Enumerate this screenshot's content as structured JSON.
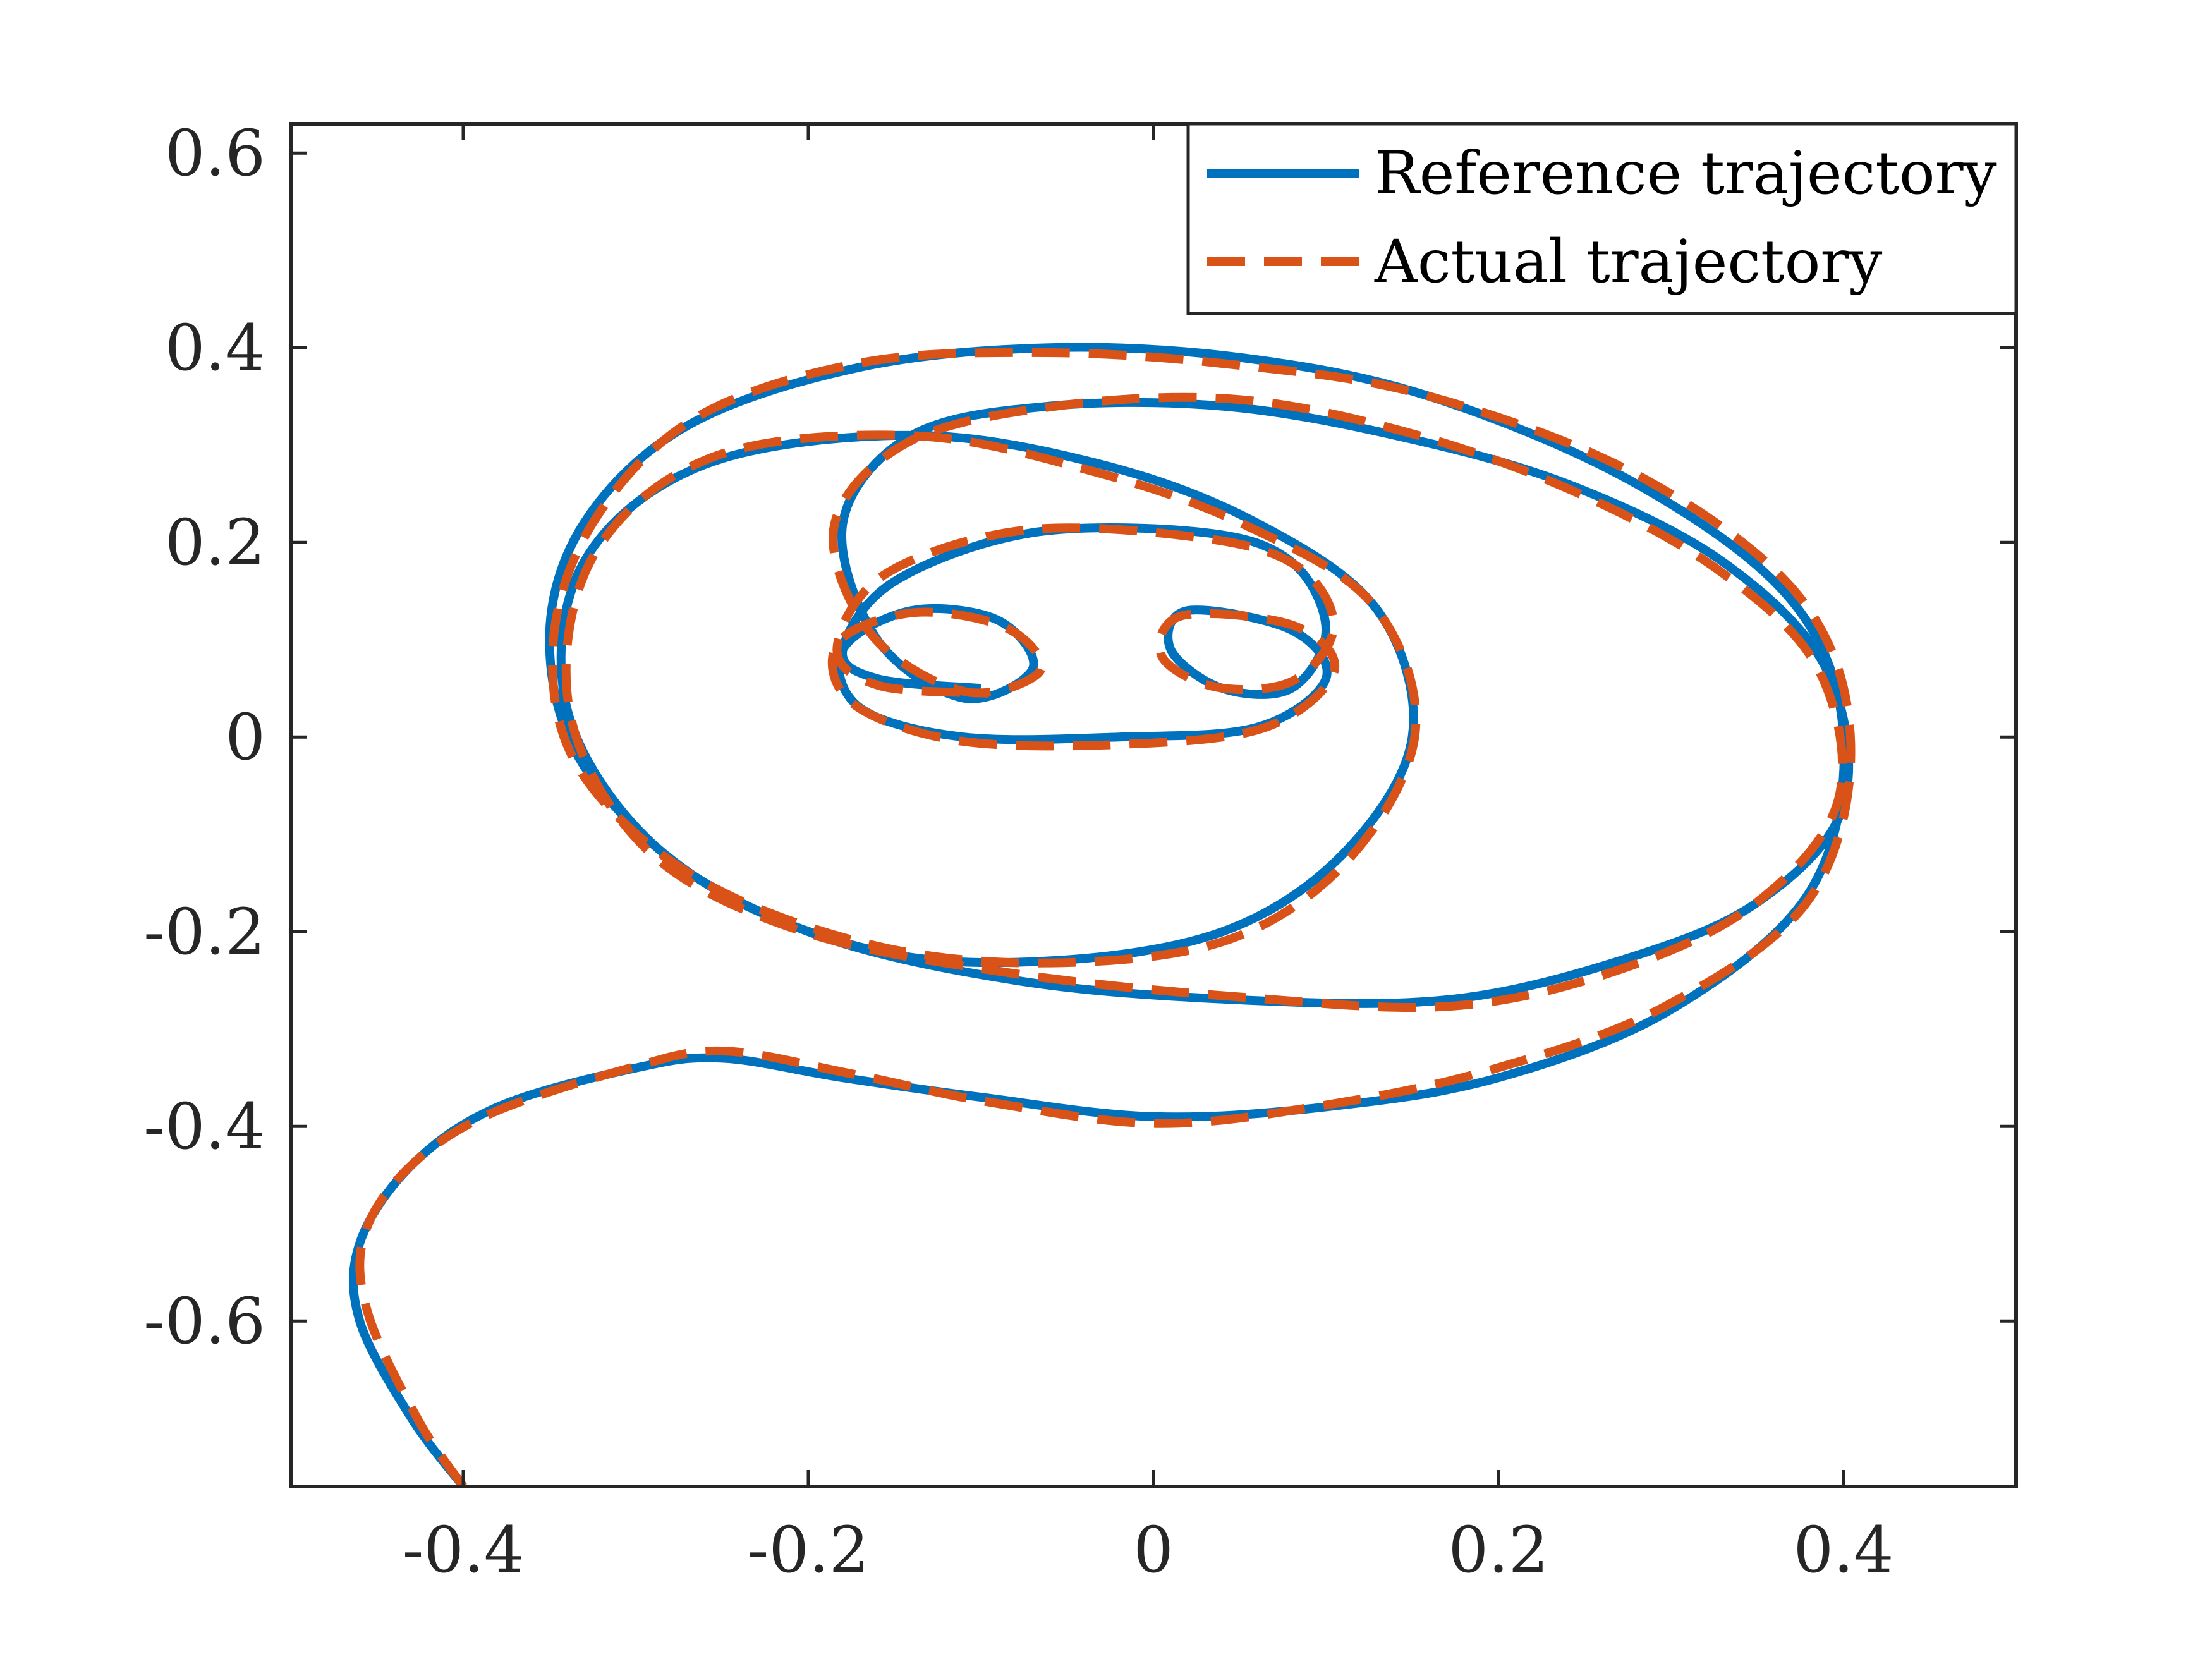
{
  "chart_data": {
    "type": "line",
    "title": "",
    "xlabel": "",
    "ylabel": "",
    "xlim": [
      -0.5,
      0.5
    ],
    "ylim": [
      -0.77,
      0.63
    ],
    "xticks": [
      -0.4,
      -0.2,
      0,
      0.2,
      0.4
    ],
    "yticks": [
      0.6,
      0.4,
      0.2,
      0,
      -0.2,
      -0.4,
      -0.6
    ],
    "xtick_labels": [
      "-0.4",
      "-0.2",
      "0",
      "0.2",
      "0.4"
    ],
    "ytick_labels": [
      "0.6",
      "0.4",
      "0.2",
      "0",
      "-0.2",
      "-0.4",
      "-0.6"
    ],
    "grid": false,
    "legend_position": "top-right",
    "series": [
      {
        "name": "Reference trajectory",
        "color": "#0072BD",
        "style": "solid",
        "description_points": {
          "x": [
            -0.4,
            -0.43,
            -0.46,
            -0.46,
            -0.43,
            -0.38,
            -0.3,
            -0.25,
            -0.18,
            -0.1,
            0.0,
            0.1,
            0.2,
            0.3,
            0.38,
            0.4,
            0.37,
            0.28,
            0.16,
            0.05,
            -0.06,
            -0.17,
            -0.27,
            -0.33,
            -0.35,
            -0.33,
            -0.26,
            -0.16,
            -0.06,
            0.04,
            0.11,
            0.15,
            0.13,
            0.06,
            -0.03,
            -0.14,
            -0.26,
            -0.33,
            -0.34,
            -0.29,
            -0.2,
            -0.08,
            0.05,
            0.17,
            0.27,
            0.35,
            0.4,
            0.39,
            0.33,
            0.24,
            0.14,
            0.04,
            -0.06,
            -0.14,
            -0.18,
            -0.16,
            -0.11,
            -0.07,
            -0.09,
            -0.14,
            -0.18,
            -0.17,
            -0.11,
            -0.02,
            0.06,
            0.1,
            0.08,
            0.02,
            0.01,
            0.04,
            0.08,
            0.1,
            0.08,
            0.03,
            -0.07,
            -0.15,
            -0.18,
            -0.16,
            -0.1
          ],
          "y": [
            -0.77,
            -0.7,
            -0.6,
            -0.52,
            -0.44,
            -0.38,
            -0.34,
            -0.33,
            -0.35,
            -0.37,
            -0.39,
            -0.38,
            -0.35,
            -0.28,
            -0.16,
            0.0,
            0.14,
            0.26,
            0.35,
            0.39,
            0.4,
            0.38,
            0.32,
            0.22,
            0.1,
            -0.03,
            -0.15,
            -0.22,
            -0.23,
            -0.2,
            -0.12,
            0.0,
            0.13,
            0.22,
            0.28,
            0.31,
            0.28,
            0.18,
            0.03,
            -0.11,
            -0.2,
            -0.25,
            -0.27,
            -0.27,
            -0.23,
            -0.17,
            -0.07,
            0.07,
            0.18,
            0.26,
            0.31,
            0.34,
            0.34,
            0.31,
            0.22,
            0.1,
            0.04,
            0.07,
            0.12,
            0.13,
            0.09,
            0.03,
            0.0,
            0.0,
            0.01,
            0.06,
            0.11,
            0.13,
            0.09,
            0.05,
            0.05,
            0.11,
            0.18,
            0.21,
            0.21,
            0.16,
            0.09,
            0.06,
            0.05
          ]
        }
      },
      {
        "name": "Actual trajectory",
        "color": "#D95319",
        "style": "dashed"
      }
    ]
  }
}
